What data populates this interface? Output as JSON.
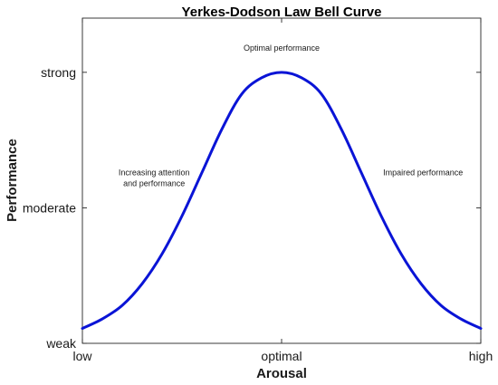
{
  "chart_data": {
    "type": "line",
    "title": "Yerkes-Dodson Law Bell Curve",
    "xlabel": "Arousal",
    "ylabel": "Performance",
    "x_ticks": [
      "low",
      "optimal",
      "high"
    ],
    "y_ticks": [
      "weak",
      "moderate",
      "strong"
    ],
    "xlim": [
      0,
      1
    ],
    "ylim": [
      0,
      1.2
    ],
    "grid": false,
    "legend": false,
    "series": [
      {
        "color": "#0a14d6",
        "x": [
          0.0,
          0.05,
          0.1,
          0.15,
          0.2,
          0.25,
          0.3,
          0.35,
          0.4,
          0.45,
          0.5,
          0.55,
          0.6,
          0.65,
          0.7,
          0.75,
          0.8,
          0.85,
          0.9,
          0.95,
          1.0
        ],
        "y": [
          0.055,
          0.09,
          0.14,
          0.22,
          0.33,
          0.47,
          0.63,
          0.79,
          0.92,
          0.98,
          1.0,
          0.98,
          0.92,
          0.79,
          0.63,
          0.47,
          0.33,
          0.22,
          0.14,
          0.09,
          0.055
        ]
      }
    ],
    "annotations": [
      {
        "lines": [
          "Optimal performance"
        ],
        "x": 0.5,
        "y": 1.08
      },
      {
        "lines": [
          "Increasing attention",
          "and performance"
        ],
        "x": 0.18,
        "y": 0.62
      },
      {
        "lines": [
          "Impaired performance"
        ],
        "x": 0.855,
        "y": 0.62
      }
    ]
  }
}
